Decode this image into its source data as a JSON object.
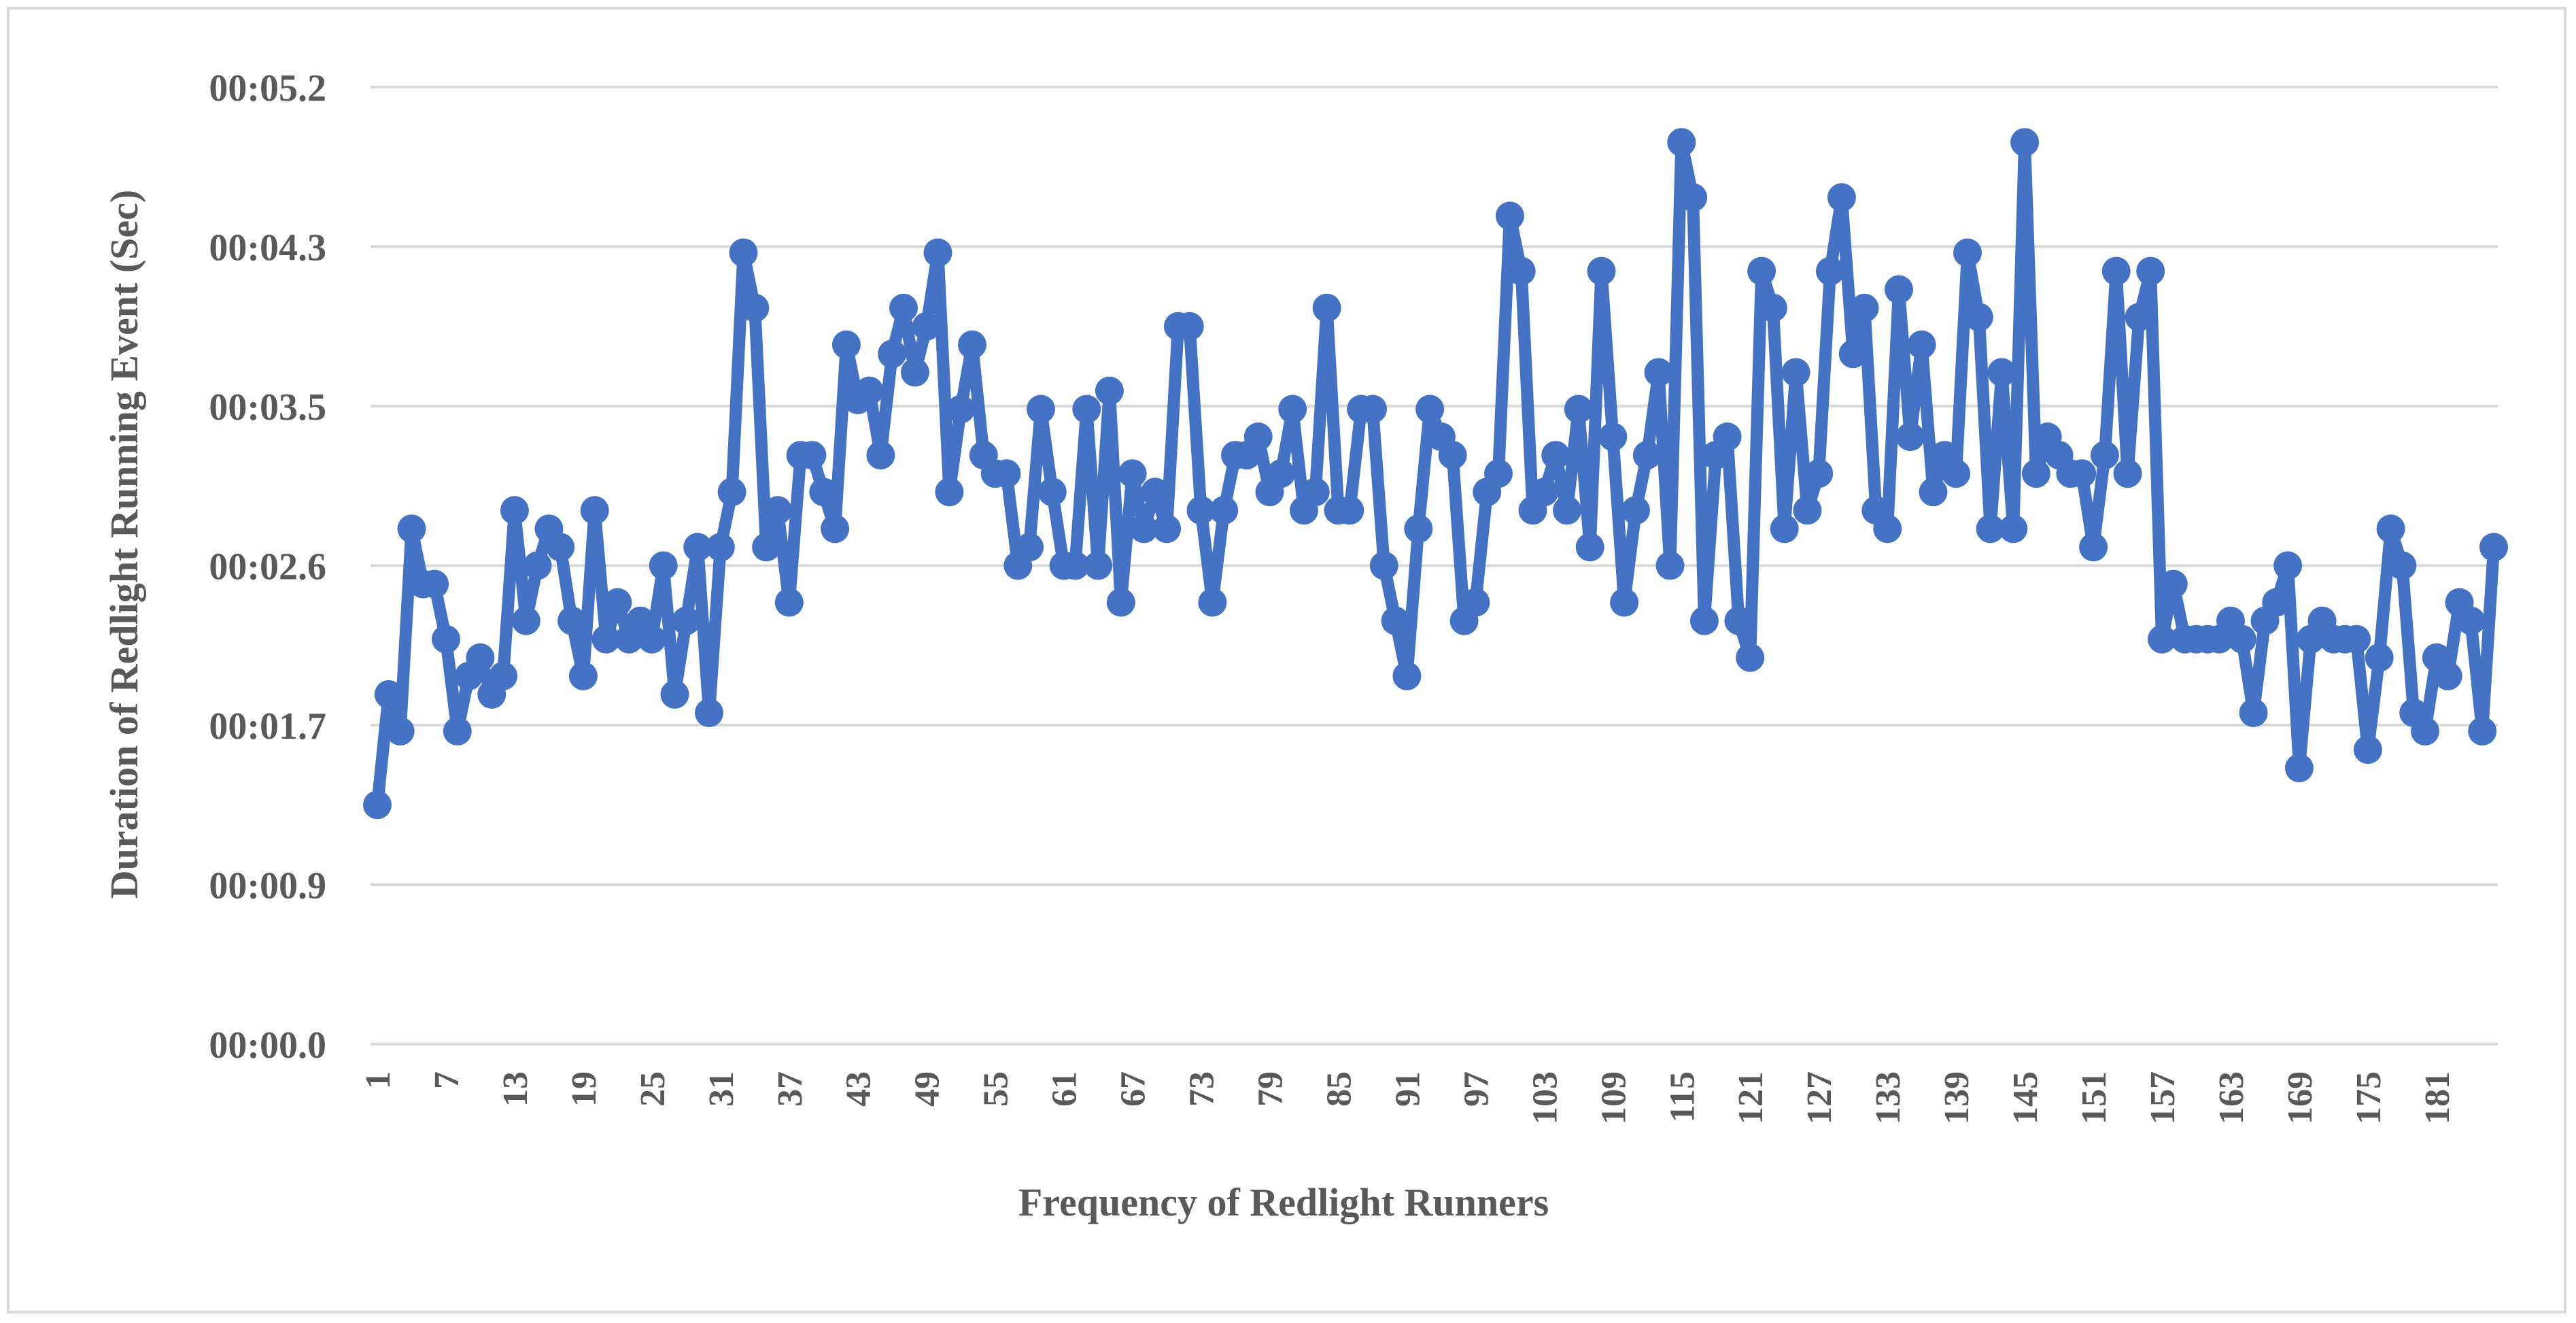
{
  "chart_data": {
    "type": "line",
    "title": "",
    "xlabel": "Frequency of Redlight Runners",
    "ylabel": "Duration of Redlight Running Event (Sec)",
    "x_tick_labels": [
      "1",
      "7",
      "13",
      "19",
      "25",
      "31",
      "37",
      "43",
      "49",
      "55",
      "61",
      "67",
      "73",
      "79",
      "85",
      "91",
      "97",
      "103",
      "109",
      "115",
      "121",
      "127",
      "133",
      "139",
      "145",
      "151",
      "157",
      "163",
      "169",
      "175",
      "181"
    ],
    "x_tick_step": 6,
    "y_tick_labels": [
      "00:00.0",
      "00:00.9",
      "00:01.7",
      "00:02.6",
      "00:03.5",
      "00:04.3",
      "00:05.2"
    ],
    "ylim_seconds": [
      0,
      5.2
    ],
    "grid": "horizontal",
    "legend": "none",
    "color": "#4472c4",
    "series": [
      {
        "values": [
          1.3,
          1.9,
          1.7,
          2.8,
          2.5,
          2.5,
          2.2,
          1.7,
          2.0,
          2.1,
          1.9,
          2.0,
          2.9,
          2.3,
          2.6,
          2.8,
          2.7,
          2.3,
          2.0,
          2.9,
          2.2,
          2.4,
          2.2,
          2.3,
          2.2,
          2.6,
          1.9,
          2.3,
          2.7,
          1.8,
          2.7,
          3.0,
          4.3,
          4.0,
          2.7,
          2.9,
          2.4,
          3.2,
          3.2,
          3.0,
          2.8,
          3.8,
          3.5,
          3.55,
          3.2,
          3.75,
          4.0,
          3.65,
          3.9,
          4.3,
          3.0,
          3.45,
          3.8,
          3.2,
          3.1,
          3.1,
          2.6,
          2.7,
          3.45,
          3.0,
          2.6,
          2.6,
          3.45,
          2.6,
          3.55,
          2.4,
          3.1,
          2.8,
          3.0,
          2.8,
          3.9,
          3.9,
          2.9,
          2.4,
          2.9,
          3.2,
          3.2,
          3.3,
          3.0,
          3.1,
          3.45,
          2.9,
          3.0,
          4.0,
          2.9,
          2.9,
          3.45,
          3.45,
          2.6,
          2.3,
          2.0,
          2.8,
          3.45,
          3.3,
          3.2,
          2.3,
          2.4,
          3.0,
          3.1,
          4.5,
          4.2,
          2.9,
          3.0,
          3.2,
          2.9,
          3.45,
          2.7,
          4.2,
          3.3,
          2.4,
          2.9,
          3.2,
          3.65,
          2.6,
          4.9,
          4.6,
          2.3,
          3.2,
          3.3,
          2.3,
          2.1,
          4.2,
          4.0,
          2.8,
          3.65,
          2.9,
          3.1,
          4.2,
          4.6,
          3.75,
          4.0,
          2.9,
          2.8,
          4.1,
          3.3,
          3.8,
          3.0,
          3.2,
          3.1,
          4.3,
          3.95,
          2.8,
          3.65,
          2.8,
          4.9,
          3.1,
          3.3,
          3.2,
          3.1,
          3.1,
          2.7,
          3.2,
          4.2,
          3.1,
          3.95,
          4.2,
          2.2,
          2.5,
          2.2,
          2.2,
          2.2,
          2.2,
          2.3,
          2.2,
          1.8,
          2.3,
          2.4,
          2.6,
          1.5,
          2.2,
          2.3,
          2.2,
          2.2,
          2.2,
          1.6,
          2.1,
          2.8,
          2.6,
          1.8,
          1.7,
          2.1,
          2.0,
          2.4,
          2.3,
          1.7,
          2.7
        ]
      }
    ]
  }
}
